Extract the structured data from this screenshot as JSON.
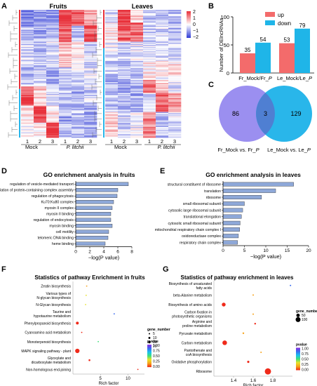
{
  "panels": {
    "A": "A",
    "B": "B",
    "C": "C",
    "D": "D",
    "E": "E",
    "F": "F",
    "G": "G"
  },
  "colors": {
    "heat_high": "#e8303a",
    "heat_mid": "#ffffff",
    "heat_low": "#2f3bd6",
    "up": "#f36b6b",
    "down": "#1fb5e8",
    "venn_left": "#9b8ff0",
    "venn_right": "#29b6ea",
    "venn_overlap": "#4f7fd2",
    "go_bar": "#8ea8d8",
    "pval_scale": [
      "#8b2be2",
      "#3b6cf0",
      "#19c0f0",
      "#3fe07a",
      "#e8e22a",
      "#f7a21a",
      "#ef2a1a"
    ],
    "red_dot": "#ef2a1a"
  },
  "chart_data": [
    {
      "type": "heatmap",
      "panel": "A",
      "blocks": [
        {
          "title": "Fruits",
          "columns": [
            "1",
            "2",
            "3",
            "1",
            "2",
            "3"
          ],
          "groups": [
            "Mock",
            "P. litchii"
          ]
        },
        {
          "title": "Leaves",
          "columns": [
            "1",
            "2",
            "3",
            "1",
            "2",
            "3"
          ],
          "groups": [
            "Mock",
            "P. litchii"
          ]
        }
      ],
      "colorbar": {
        "ticks": [
          "2",
          "1",
          "0",
          "−1",
          "−2"
        ],
        "range": [
          -2,
          2
        ]
      }
    },
    {
      "type": "bar",
      "panel": "B",
      "categories": [
        "Fr_Mock/Fr_P",
        "Le_Mock/Le_P"
      ],
      "series": [
        {
          "name": "up",
          "values": [
            35,
            53
          ]
        },
        {
          "name": "down",
          "values": [
            54,
            79
          ]
        }
      ],
      "ylabel": "Number of DElncRNAs",
      "ylim": [
        0,
        100
      ],
      "yticks": [
        "0",
        "50",
        "100"
      ],
      "legend": "top-right"
    },
    {
      "type": "venn",
      "panel": "C",
      "sets": [
        {
          "label": "Fr_Mock vs. Fr_P",
          "only": 86
        },
        {
          "label": "Le_Mock vs. Le_P",
          "only": 129
        }
      ],
      "overlap": 3
    },
    {
      "type": "bar",
      "panel": "D",
      "orientation": "horizontal",
      "title": "GO enrichment analysis in fruits",
      "categories": [
        "regulation of vesicle-mediated transport",
        "regulation of protein-containing complex assembly",
        "regulation of phagocytosis",
        "Ku70:Ku80 complex",
        "myosin II complex",
        "myosin II binding",
        "regulation of endocytosis",
        "myosin binding",
        "cell motility",
        "telomeric DNA binding",
        "heme binding"
      ],
      "values": [
        7.5,
        6.0,
        5.9,
        5.4,
        5.2,
        5.0,
        5.0,
        5.2,
        4.7,
        4.6,
        4.2
      ],
      "xlabel": "−log(P value)",
      "xlim": [
        0,
        8
      ],
      "xticks": [
        "0",
        "2",
        "4",
        "6",
        "8"
      ]
    },
    {
      "type": "bar",
      "panel": "E",
      "orientation": "horizontal",
      "title": "GO enrichment analysis in leaves",
      "categories": [
        "structural constituent of ribosome",
        "translation",
        "ribosome",
        "small ribosomal subunit",
        "cytosolic large ribosomal subunit",
        "translational elongation",
        "cytosolic small ribosomal subunit",
        "mitochondrial respiratory chain complex I",
        "oxidoreductase complex",
        "respiratory chain complex"
      ],
      "values": [
        16.5,
        12.3,
        9.0,
        5.0,
        4.6,
        4.3,
        4.0,
        3.9,
        3.6,
        3.4
      ],
      "xlabel": "−log(P value)",
      "xlim": [
        0,
        20
      ],
      "xticks": [
        "0",
        "5",
        "10",
        "15",
        "20"
      ]
    },
    {
      "type": "scatter",
      "panel": "F",
      "title": "Statistics of pathway Enrichment in fruits",
      "categories": [
        "Zeatin biosynthesis",
        "Various types of N-glycan biosynthesis",
        "N-Glycan biosynthesis",
        "Taurine and hypotaurine metabolism",
        "Phenylpropanoid biosynthesis",
        "Cyanoamino acid metabolism",
        "Monoterpenoid biosynthesis",
        "MAPK signaling pathway - plant",
        "Glyoxylate and dicarboxylate metabolism",
        "Non-homologous end-joining"
      ],
      "x": [
        2.5,
        2.4,
        2.3,
        7.5,
        0.8,
        1.6,
        4.6,
        0.8,
        3.0,
        11.8
      ],
      "sizes": [
        1,
        1,
        1,
        1,
        5,
        1,
        1,
        12,
        2,
        1
      ],
      "pvalue": [
        0.25,
        0.35,
        0.3,
        0.9,
        0.0,
        0.05,
        0.5,
        0.0,
        0.05,
        0.0
      ],
      "xlabel": "Rich factor",
      "xticks": [
        "5",
        "10"
      ],
      "size_legend": {
        "title": "gene_number",
        "values": [
          "5",
          "10",
          "15",
          "20"
        ]
      },
      "pvalue_legend": {
        "title": "pvalue",
        "ticks": [
          "1.00",
          "0.75",
          "0.50",
          "0.25",
          "0.00"
        ]
      }
    },
    {
      "type": "scatter",
      "panel": "G",
      "title": "Statistics  of pathway enrichment in leaves",
      "categories": [
        "Biosynthesis of unsaturated fatty acids",
        "beta-Alanine metabolism",
        "Biosynthesis of amino acids",
        "Carbon fixation in photosynthetic  organisms",
        "Arginine and proline metabolism",
        "Pyruvate metabolism",
        "Carbon metabolism",
        "Pantothenate and coA biosynthesis",
        "Oxidative phosphorylation",
        "Ribosome"
      ],
      "x": [
        1.98,
        1.6,
        1.3,
        1.6,
        1.62,
        1.5,
        1.31,
        1.68,
        1.55,
        1.75
      ],
      "sizes": [
        2,
        2,
        15,
        2,
        3,
        3,
        22,
        2,
        5,
        40
      ],
      "pvalue": [
        0.9,
        0.2,
        0.0,
        0.1,
        0.05,
        0.1,
        0.0,
        0.1,
        0.02,
        0.0
      ],
      "xlabel": "Rich factor",
      "xticks": [
        "1.4",
        "1.6",
        "1.8"
      ],
      "size_legend": {
        "title": "gene_number",
        "values": [
          "50",
          "100"
        ]
      },
      "pvalue_legend": {
        "title": "pvalue",
        "ticks": [
          "1.00",
          "0.75",
          "0.50",
          "0.25",
          "0.00"
        ]
      }
    }
  ]
}
